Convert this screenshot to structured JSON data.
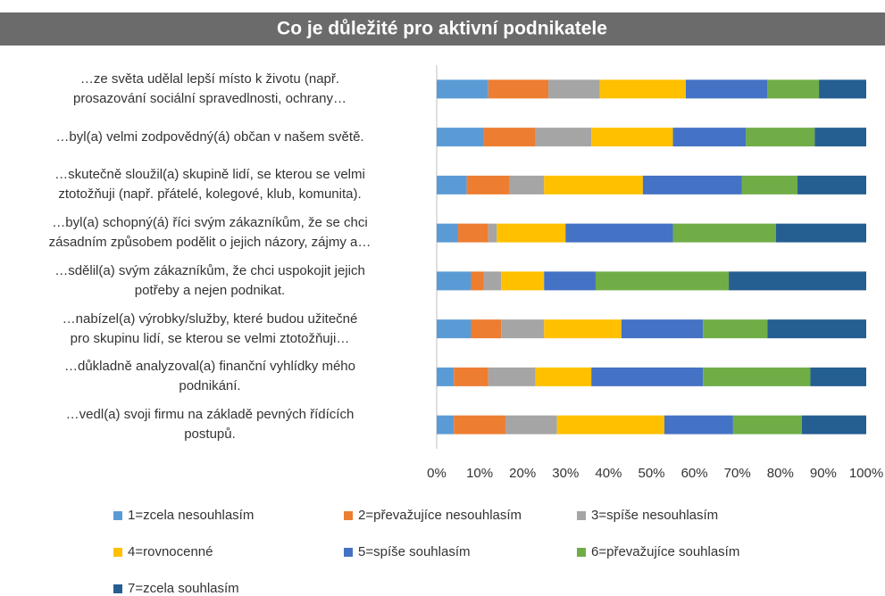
{
  "chart_data": {
    "type": "stacked-barh",
    "title": "Co je důležité pro aktivní podnikatele",
    "categories": [
      "…ze světa udělal lepší místo k životu (např.\nprosazování sociální spravedlnosti, ochrany…",
      "…byl(a) velmi zodpovědný(á) občan v našem světě.",
      "…skutečně sloužil(a) skupině lidí, se kterou se velmi\nztotožňuji (např. přátelé, kolegové, klub, komunita).",
      "…byl(a) schopný(á) říci svým zákazníkům, že se chci\nzásadním způsobem podělit o jejich názory, zájmy a…",
      "…sdělil(a) svým zákazníkům, že chci uspokojit jejich\npotřeby a nejen podnikat.",
      "…nabízel(a) výrobky/služby, které budou užitečné\npro skupinu lidí, se kterou se velmi ztotožňuji…",
      "…důkladně analyzoval(a) finanční vyhlídky mého\npodnikání.",
      "…vedl(a) svoji firmu na základě pevných řídících\npostupů."
    ],
    "series": [
      {
        "name": "1=zcela nesouhlasím",
        "color": "#5b9bd5",
        "values": [
          12,
          11,
          7,
          5,
          8,
          8,
          4,
          4
        ]
      },
      {
        "name": "2=převažujíce nesouhlasím",
        "color": "#ed7d31",
        "values": [
          14,
          12,
          10,
          7,
          3,
          7,
          8,
          12
        ]
      },
      {
        "name": "3=spíše nesouhlasím",
        "color": "#a5a5a5",
        "values": [
          12,
          13,
          8,
          2,
          4,
          10,
          11,
          12
        ]
      },
      {
        "name": "4=rovnocenné",
        "color": "#ffc000",
        "values": [
          20,
          19,
          23,
          16,
          10,
          18,
          13,
          25
        ]
      },
      {
        "name": "5=spíše souhlasím",
        "color": "#4472c4",
        "values": [
          19,
          17,
          23,
          25,
          12,
          19,
          26,
          16
        ]
      },
      {
        "name": "6=převažujíce souhlasím",
        "color": "#70ad47",
        "values": [
          12,
          16,
          13,
          24,
          31,
          15,
          25,
          16
        ]
      },
      {
        "name": "7=zcela souhlasím",
        "color": "#255e91",
        "values": [
          11,
          12,
          16,
          21,
          32,
          23,
          13,
          15
        ]
      }
    ],
    "xlim": [
      0,
      100
    ],
    "xticks": [
      {
        "value": 0,
        "label": "0%"
      },
      {
        "value": 10,
        "label": "10%"
      },
      {
        "value": 20,
        "label": "20%"
      },
      {
        "value": 30,
        "label": "30%"
      },
      {
        "value": 40,
        "label": "40%"
      },
      {
        "value": 50,
        "label": "50%"
      },
      {
        "value": 60,
        "label": "60%"
      },
      {
        "value": 70,
        "label": "70%"
      },
      {
        "value": 80,
        "label": "80%"
      },
      {
        "value": 90,
        "label": "90%"
      },
      {
        "value": 100,
        "label": "100%"
      }
    ],
    "grid": false,
    "legend": "bottom"
  }
}
